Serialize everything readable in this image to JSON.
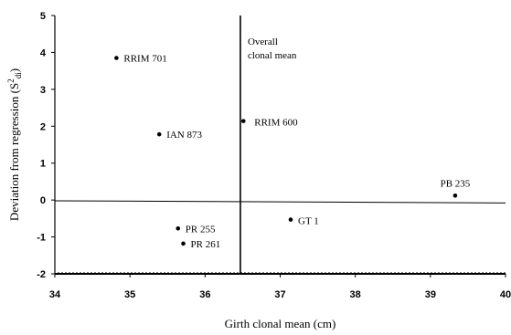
{
  "chart_data": {
    "type": "scatter",
    "title": "",
    "xlabel": "Girth clonal mean (cm)",
    "ylabel": {
      "main": "Deviation from regression (S",
      "sup": "2",
      "sub": "di",
      "close": ")"
    },
    "xlim": [
      34,
      40
    ],
    "ylim": [
      -2,
      5
    ],
    "xticks": [
      "34",
      "35",
      "36",
      "37",
      "38",
      "39",
      "40"
    ],
    "yticks": [
      "-2",
      "-1",
      "0",
      "1",
      "2",
      "3",
      "4",
      "5"
    ],
    "grid": false,
    "legend": "none",
    "points": [
      {
        "label": "RRIM 701",
        "x": 34.82,
        "y": 3.85
      },
      {
        "label": "IAN 873",
        "x": 35.39,
        "y": 1.78
      },
      {
        "label": "RRIM 600",
        "x": 36.51,
        "y": 2.14
      },
      {
        "label": "PB 235",
        "x": 39.33,
        "y": 0.12
      },
      {
        "label": "GT 1",
        "x": 37.14,
        "y": -0.53
      },
      {
        "label": "PR 255",
        "x": 35.64,
        "y": -0.77
      },
      {
        "label": "PR 261",
        "x": 35.71,
        "y": -1.18
      }
    ],
    "reference_lines": {
      "vertical_x": 36.47,
      "vertical_label_lines": [
        "Overall",
        "clonal mean"
      ],
      "regression": {
        "x": [
          34,
          40
        ],
        "y": [
          -0.02,
          -0.08
        ]
      }
    },
    "colors": {
      "marks": "#000000",
      "background": "#ffffff"
    }
  }
}
